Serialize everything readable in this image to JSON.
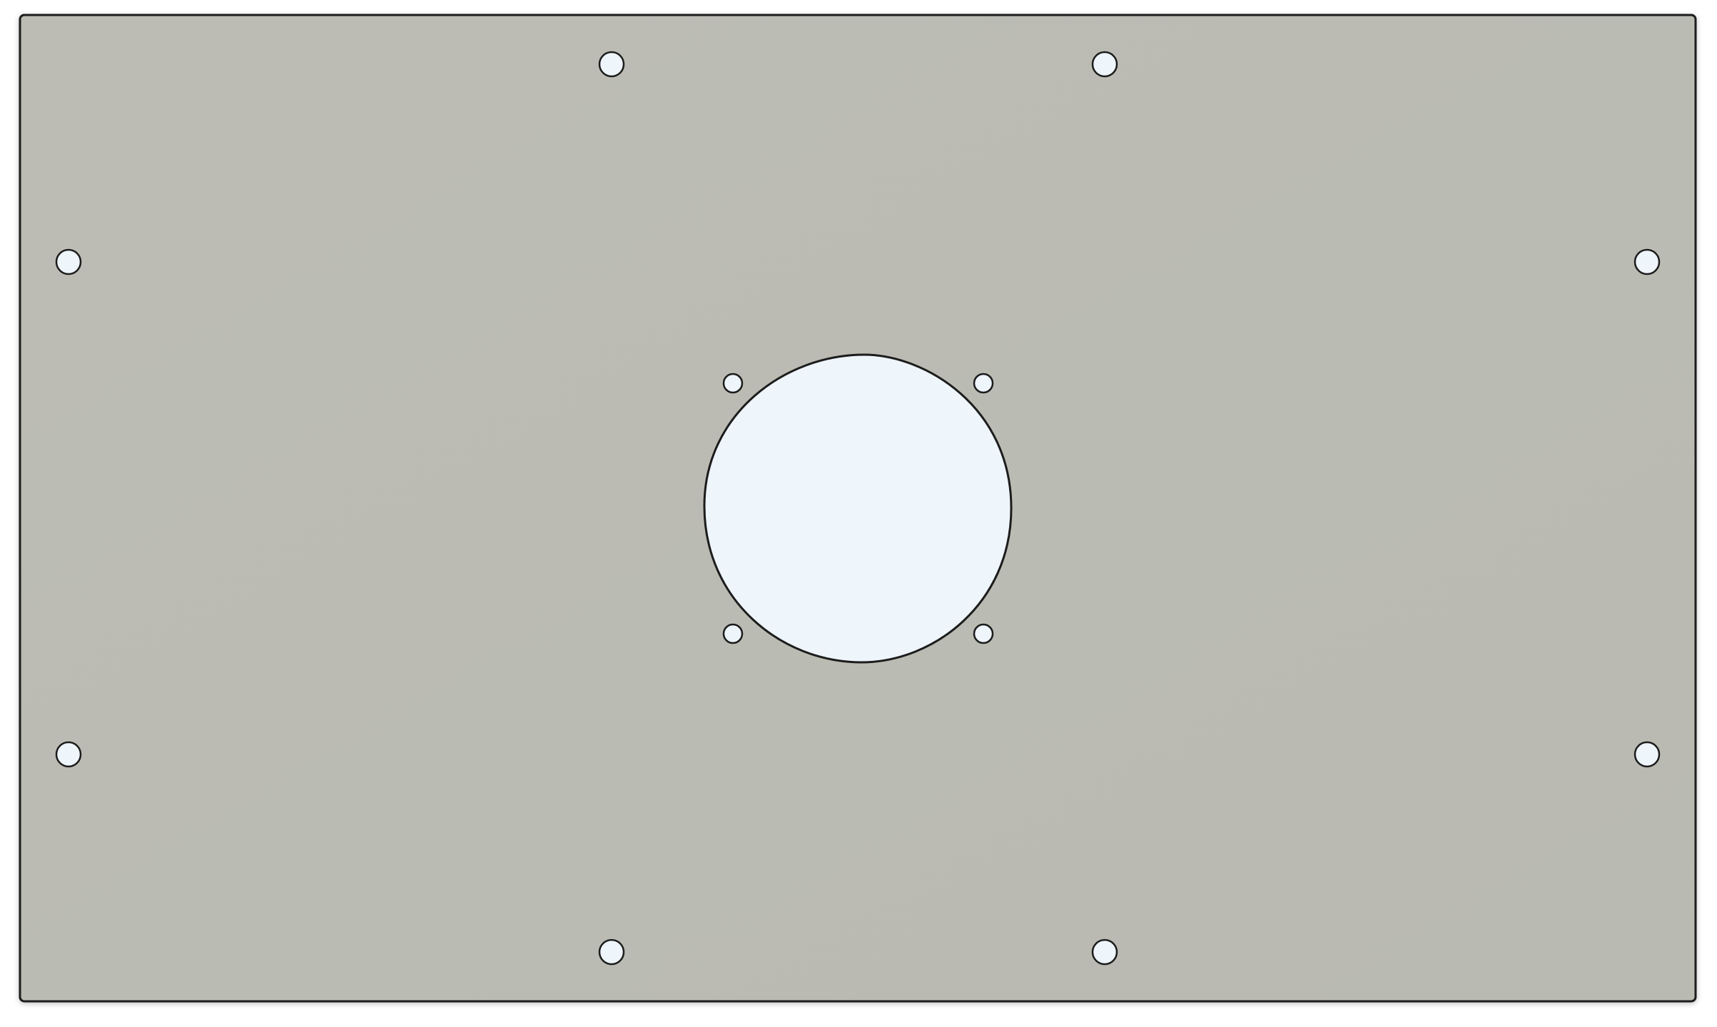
{
  "view": {
    "background_color": "#ffffff"
  },
  "part": {
    "shape": "rectangular plate",
    "plate_color": "#b9bab2",
    "plate_gradient_light": "#bcbcb4",
    "edge_color": "#1c1c1c",
    "hole_fill_color": "#eef5fb",
    "mounting_hole_count": 8,
    "fan_screw_hole_count": 4,
    "center_cutout_count": 1
  }
}
